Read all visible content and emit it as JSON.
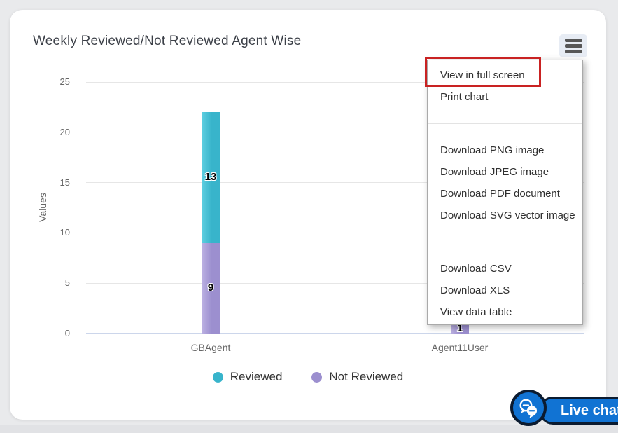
{
  "header": {
    "title": "Weekly Reviewed/Not Reviewed Agent Wise"
  },
  "context_menu": {
    "icon": "hamburger-icon",
    "groups": [
      [
        "View in full screen",
        "Print chart"
      ],
      [
        "Download PNG image",
        "Download JPEG image",
        "Download PDF document",
        "Download SVG vector image"
      ],
      [
        "Download CSV",
        "Download XLS",
        "View data table"
      ]
    ],
    "highlighted_item": "View in full screen",
    "highlight_color": "#c92222"
  },
  "chart_data": {
    "type": "bar",
    "stacked": true,
    "title": "Weekly Reviewed/Not Reviewed Agent Wise",
    "categories": [
      "GBAgent",
      "Agent11User"
    ],
    "series": [
      {
        "name": "Reviewed",
        "color": "#38b4cb",
        "color_light": "#5ed0e1",
        "values": [
          13,
          0
        ]
      },
      {
        "name": "Not Reviewed",
        "color": "#9c8fcf",
        "color_light": "#bdb2e3",
        "values": [
          9,
          1
        ]
      }
    ],
    "xlabel": "",
    "ylabel": "Values",
    "ylim": [
      0,
      25
    ],
    "yticks": [
      0,
      5,
      10,
      15,
      20,
      25
    ],
    "grid": true,
    "legend_position": "bottom",
    "data_labels": true,
    "axis_line_color": "#ccd6eb",
    "gridline_color": "#e6e6e6"
  },
  "live_chat": {
    "label": "Live chat",
    "color": "#1173d3",
    "outline": "#0b1b30"
  }
}
